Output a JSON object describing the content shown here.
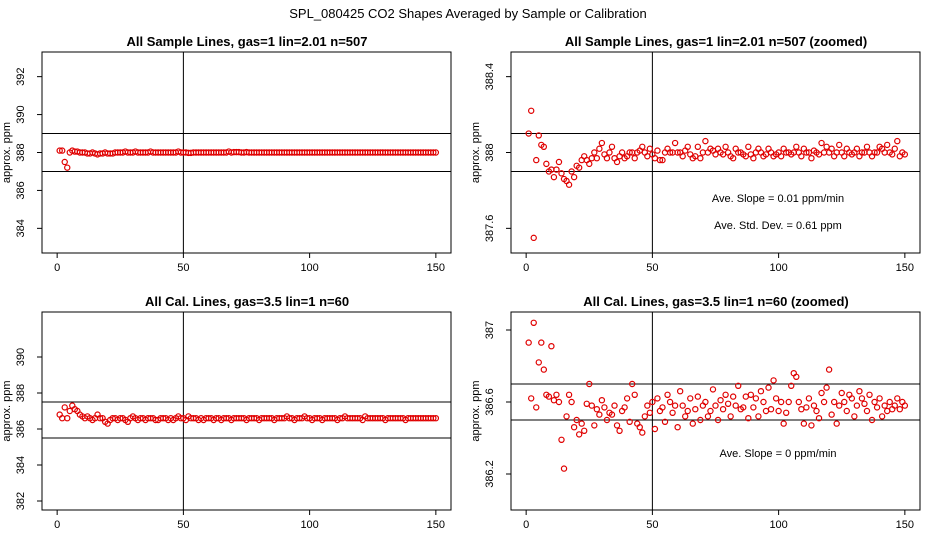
{
  "main_title": "SPL_080425  CO2 Shapes Averaged by Sample or Calibration",
  "chart_data": [
    {
      "type": "scatter",
      "title": "All Sample Lines, gas=1 lin=2.01 n=507",
      "xlabel": "",
      "ylabel": "approx. ppm",
      "xlim": [
        -6,
        156
      ],
      "ylim": [
        382.7,
        393.3
      ],
      "xticks": [
        0,
        50,
        100,
        150
      ],
      "yticks": [
        384,
        386,
        388,
        390,
        392
      ],
      "vline": 50,
      "hlines": [
        387.0,
        389.0
      ],
      "marker_color": "#e00000",
      "annotations": [],
      "x": [
        1,
        2,
        3,
        4,
        5,
        6,
        7,
        8,
        9,
        10,
        11,
        12,
        13,
        14,
        15,
        16,
        17,
        18,
        19,
        20,
        21,
        22,
        23,
        24,
        25,
        26,
        27,
        28,
        29,
        30,
        31,
        32,
        33,
        34,
        35,
        36,
        37,
        38,
        39,
        40,
        41,
        42,
        43,
        44,
        45,
        46,
        47,
        48,
        49,
        50,
        51,
        52,
        53,
        54,
        55,
        56,
        57,
        58,
        59,
        60,
        61,
        62,
        63,
        64,
        65,
        66,
        67,
        68,
        69,
        70,
        71,
        72,
        73,
        74,
        75,
        76,
        77,
        78,
        79,
        80,
        81,
        82,
        83,
        84,
        85,
        86,
        87,
        88,
        89,
        90,
        91,
        92,
        93,
        94,
        95,
        96,
        97,
        98,
        99,
        100,
        101,
        102,
        103,
        104,
        105,
        106,
        107,
        108,
        109,
        110,
        111,
        112,
        113,
        114,
        115,
        116,
        117,
        118,
        119,
        120,
        121,
        122,
        123,
        124,
        125,
        126,
        127,
        128,
        129,
        130,
        131,
        132,
        133,
        134,
        135,
        136,
        137,
        138,
        139,
        140,
        141,
        142,
        143,
        144,
        145,
        146,
        147,
        148,
        149,
        150
      ],
      "y": [
        388.1,
        388.1,
        387.5,
        387.2,
        388.0,
        388.1,
        388.05,
        388.05,
        388.0,
        388.0,
        388.0,
        387.95,
        387.95,
        388.0,
        387.95,
        387.9,
        387.95,
        387.95,
        388.0,
        387.95,
        387.95,
        387.95,
        388.0,
        388.0,
        388.0,
        388.0,
        388.05,
        388.0,
        388.0,
        388.0,
        388.05,
        388.0,
        388.0,
        388.0,
        388.0,
        388.0,
        388.05,
        388.0,
        388.0,
        388.0,
        388.0,
        388.0,
        388.0,
        388.0,
        388.0,
        388.0,
        388.0,
        388.05,
        388.0,
        388.0,
        388.0,
        387.98,
        387.98,
        388.0,
        388.0,
        388.0,
        388.0,
        388.0,
        388.0,
        388.0,
        388.0,
        388.0,
        388.0,
        388.0,
        388.0,
        388.0,
        388.0,
        388.05,
        388.0,
        388.02,
        388.02,
        388.02,
        388.0,
        388.0,
        388.02,
        388.0,
        388.0,
        388.0,
        388.0,
        388.0,
        388.0,
        388.0,
        388.0,
        388.0,
        388.0,
        388.0,
        388.0,
        388.0,
        388.0,
        388.0,
        388.0,
        388.0,
        388.0,
        388.0,
        388.0,
        388.0,
        388.0,
        388.0,
        388.0,
        388.0,
        388.0,
        388.0,
        388.0,
        388.0,
        388.0,
        388.0,
        388.0,
        388.0,
        388.0,
        388.0,
        388.0,
        388.0,
        388.0,
        388.0,
        388.0,
        388.0,
        388.0,
        388.0,
        388.0,
        388.0,
        388.0,
        388.0,
        388.0,
        388.0,
        388.0,
        388.0,
        388.0,
        388.0,
        388.0,
        388.0,
        388.0,
        388.0,
        388.0,
        388.0,
        388.0,
        388.0,
        388.0,
        388.0,
        388.0,
        388.0,
        388.0,
        388.0,
        388.0,
        388.0,
        388.0,
        388.0,
        388.0,
        388.0,
        388.0,
        388.0
      ]
    },
    {
      "type": "scatter",
      "title": "All Sample Lines, gas=1 lin=2.01 n=507 (zoomed)",
      "xlabel": "",
      "ylabel": "approx. ppm",
      "xlim": [
        -6,
        156
      ],
      "ylim": [
        387.47,
        388.53
      ],
      "xticks": [
        0,
        50,
        100,
        150
      ],
      "yticks": [
        387.6,
        388.0,
        388.4
      ],
      "vline": 50,
      "hlines": [
        387.9,
        388.1
      ],
      "marker_color": "#e00000",
      "annotations": [
        "Ave. Slope =  0.01  ppm/min",
        "Ave. Std. Dev. =  0.61  ppm"
      ],
      "x": [
        1,
        2,
        3,
        4,
        5,
        6,
        7,
        8,
        9,
        10,
        11,
        12,
        13,
        14,
        15,
        16,
        17,
        18,
        19,
        20,
        21,
        22,
        23,
        24,
        25,
        26,
        27,
        28,
        29,
        30,
        31,
        32,
        33,
        34,
        35,
        36,
        37,
        38,
        39,
        40,
        41,
        42,
        43,
        44,
        45,
        46,
        47,
        48,
        49,
        50,
        51,
        52,
        53,
        54,
        55,
        56,
        57,
        58,
        59,
        60,
        61,
        62,
        63,
        64,
        65,
        66,
        67,
        68,
        69,
        70,
        71,
        72,
        73,
        74,
        75,
        76,
        77,
        78,
        79,
        80,
        81,
        82,
        83,
        84,
        85,
        86,
        87,
        88,
        89,
        90,
        91,
        92,
        93,
        94,
        95,
        96,
        97,
        98,
        99,
        100,
        101,
        102,
        103,
        104,
        105,
        106,
        107,
        108,
        109,
        110,
        111,
        112,
        113,
        114,
        115,
        116,
        117,
        118,
        119,
        120,
        121,
        122,
        123,
        124,
        125,
        126,
        127,
        128,
        129,
        130,
        131,
        132,
        133,
        134,
        135,
        136,
        137,
        138,
        139,
        140,
        141,
        142,
        143,
        144,
        145,
        146,
        147,
        148,
        149,
        150
      ],
      "y": [
        388.1,
        388.22,
        387.55,
        387.96,
        388.09,
        388.04,
        388.03,
        387.94,
        387.9,
        387.91,
        387.87,
        387.91,
        387.95,
        387.89,
        387.86,
        387.85,
        387.83,
        387.9,
        387.87,
        387.93,
        387.92,
        387.96,
        387.98,
        387.96,
        387.94,
        387.97,
        388.0,
        387.97,
        388.02,
        388.05,
        387.99,
        387.97,
        388.0,
        388.03,
        387.97,
        387.95,
        387.98,
        388.0,
        387.97,
        387.98,
        388.0,
        388.0,
        387.97,
        388.0,
        388.01,
        388.03,
        388.0,
        387.98,
        388.02,
        387.99,
        387.97,
        388.01,
        387.96,
        387.96,
        388.0,
        388.02,
        388.0,
        388.0,
        388.05,
        388.0,
        388.0,
        387.98,
        388.01,
        388.03,
        387.99,
        387.97,
        387.98,
        388.03,
        387.97,
        388.0,
        388.06,
        388.0,
        388.02,
        388.01,
        387.99,
        388.02,
        388.0,
        387.99,
        388.03,
        388.0,
        387.98,
        387.97,
        388.02,
        388.0,
        388.0,
        387.99,
        387.98,
        388.03,
        387.99,
        387.97,
        388.0,
        388.02,
        388.0,
        387.98,
        387.99,
        388.02,
        388.0,
        387.98,
        387.99,
        388.0,
        387.98,
        388.02,
        388.0,
        388.0,
        387.99,
        388.0,
        388.03,
        388.0,
        387.98,
        388.02,
        388.0,
        388.0,
        387.97,
        388.01,
        388.0,
        387.99,
        388.05,
        388.0,
        388.03,
        388.0,
        388.02,
        387.98,
        388.0,
        388.04,
        388.0,
        387.98,
        388.02,
        388.0,
        387.99,
        388.0,
        388.02,
        387.98,
        388.0,
        388.0,
        388.03,
        388.0,
        387.98,
        388.0,
        388.0,
        388.03,
        388.02,
        388.0,
        388.04,
        388.0,
        387.99,
        388.02,
        388.06,
        387.98,
        388.0,
        387.99
      ]
    },
    {
      "type": "scatter",
      "title": "All Cal. Lines, gas=3.5 lin=1 n=60",
      "xlabel": "",
      "ylabel": "approx. ppm",
      "xlim": [
        -6,
        156
      ],
      "ylim": [
        381.5,
        392.5
      ],
      "xticks": [
        0,
        50,
        100,
        150
      ],
      "yticks": [
        382,
        384,
        386,
        388,
        390
      ],
      "vline": 50,
      "hlines": [
        385.5,
        387.5
      ],
      "marker_color": "#e00000",
      "annotations": [],
      "x": [
        1,
        2,
        3,
        4,
        5,
        6,
        7,
        8,
        9,
        10,
        11,
        12,
        13,
        14,
        15,
        16,
        17,
        18,
        19,
        20,
        21,
        22,
        23,
        24,
        25,
        26,
        27,
        28,
        29,
        30,
        31,
        32,
        33,
        34,
        35,
        36,
        37,
        38,
        39,
        40,
        41,
        42,
        43,
        44,
        45,
        46,
        47,
        48,
        49,
        50,
        51,
        52,
        53,
        54,
        55,
        56,
        57,
        58,
        59,
        60,
        61,
        62,
        63,
        64,
        65,
        66,
        67,
        68,
        69,
        70,
        71,
        72,
        73,
        74,
        75,
        76,
        77,
        78,
        79,
        80,
        81,
        82,
        83,
        84,
        85,
        86,
        87,
        88,
        89,
        90,
        91,
        92,
        93,
        94,
        95,
        96,
        97,
        98,
        99,
        100,
        101,
        102,
        103,
        104,
        105,
        106,
        107,
        108,
        109,
        110,
        111,
        112,
        113,
        114,
        115,
        116,
        117,
        118,
        119,
        120,
        121,
        122,
        123,
        124,
        125,
        126,
        127,
        128,
        129,
        130,
        131,
        132,
        133,
        134,
        135,
        136,
        137,
        138,
        139,
        140,
        141,
        142,
        143,
        144,
        145,
        146,
        147,
        148,
        149,
        150
      ],
      "y": [
        386.8,
        386.6,
        387.2,
        386.6,
        387.0,
        387.3,
        387.1,
        387.0,
        386.8,
        386.7,
        386.6,
        386.7,
        386.6,
        386.5,
        386.6,
        386.8,
        386.6,
        386.6,
        386.4,
        386.3,
        386.5,
        386.6,
        386.6,
        386.5,
        386.6,
        386.6,
        386.5,
        386.4,
        386.6,
        386.7,
        386.6,
        386.5,
        386.6,
        386.6,
        386.5,
        386.6,
        386.6,
        386.6,
        386.5,
        386.5,
        386.6,
        386.6,
        386.6,
        386.5,
        386.6,
        386.5,
        386.6,
        386.7,
        386.6,
        386.6,
        386.5,
        386.7,
        386.6,
        386.6,
        386.6,
        386.5,
        386.6,
        386.5,
        386.6,
        386.6,
        386.6,
        386.5,
        386.6,
        386.6,
        386.5,
        386.6,
        386.6,
        386.6,
        386.5,
        386.6,
        386.6,
        386.6,
        386.6,
        386.6,
        386.5,
        386.6,
        386.6,
        386.6,
        386.6,
        386.5,
        386.6,
        386.6,
        386.6,
        386.6,
        386.6,
        386.5,
        386.6,
        386.6,
        386.6,
        386.6,
        386.7,
        386.6,
        386.6,
        386.5,
        386.6,
        386.6,
        386.6,
        386.7,
        386.6,
        386.6,
        386.5,
        386.6,
        386.6,
        386.6,
        386.5,
        386.6,
        386.6,
        386.6,
        386.6,
        386.6,
        386.5,
        386.6,
        386.6,
        386.7,
        386.6,
        386.6,
        386.6,
        386.6,
        386.6,
        386.6,
        386.5,
        386.7,
        386.6,
        386.6,
        386.6,
        386.6,
        386.6,
        386.6,
        386.6,
        386.5,
        386.6,
        386.6,
        386.6,
        386.6,
        386.6,
        386.6,
        386.6,
        386.5,
        386.6,
        386.6,
        386.6,
        386.6,
        386.6,
        386.6,
        386.6,
        386.6,
        386.6,
        386.6,
        386.6,
        386.6
      ]
    },
    {
      "type": "scatter",
      "title": "All Cal. Lines, gas=3.5 lin=1 n=60 (zoomed)",
      "xlabel": "",
      "ylabel": "approx. ppm",
      "xlim": [
        -6,
        156
      ],
      "ylim": [
        386.0,
        387.1
      ],
      "xticks": [
        0,
        50,
        100,
        150
      ],
      "yticks": [
        386.2,
        386.6,
        387.0
      ],
      "vline": 50,
      "hlines": [
        386.5,
        386.7
      ],
      "marker_color": "#e00000",
      "annotations": [
        "Ave. Slope =  0  ppm/min"
      ],
      "x": [
        1,
        2,
        3,
        4,
        5,
        6,
        7,
        8,
        9,
        10,
        11,
        12,
        13,
        14,
        15,
        16,
        17,
        18,
        19,
        20,
        21,
        22,
        23,
        24,
        25,
        26,
        27,
        28,
        29,
        30,
        31,
        32,
        33,
        34,
        35,
        36,
        37,
        38,
        39,
        40,
        41,
        42,
        43,
        44,
        45,
        46,
        47,
        48,
        49,
        50,
        51,
        52,
        53,
        54,
        55,
        56,
        57,
        58,
        59,
        60,
        61,
        62,
        63,
        64,
        65,
        66,
        67,
        68,
        69,
        70,
        71,
        72,
        73,
        74,
        75,
        76,
        77,
        78,
        79,
        80,
        81,
        82,
        83,
        84,
        85,
        86,
        87,
        88,
        89,
        90,
        91,
        92,
        93,
        94,
        95,
        96,
        97,
        98,
        99,
        100,
        101,
        102,
        103,
        104,
        105,
        106,
        107,
        108,
        109,
        110,
        111,
        112,
        113,
        114,
        115,
        116,
        117,
        118,
        119,
        120,
        121,
        122,
        123,
        124,
        125,
        126,
        127,
        128,
        129,
        130,
        131,
        132,
        133,
        134,
        135,
        136,
        137,
        138,
        139,
        140,
        141,
        142,
        143,
        144,
        145,
        146,
        147,
        148,
        149,
        150
      ],
      "y": [
        386.93,
        386.62,
        387.04,
        386.57,
        386.82,
        386.93,
        386.78,
        386.64,
        386.63,
        386.91,
        386.61,
        386.64,
        386.6,
        386.39,
        386.23,
        386.52,
        386.64,
        386.6,
        386.46,
        386.5,
        386.42,
        386.48,
        386.44,
        386.59,
        386.7,
        386.58,
        386.47,
        386.56,
        386.53,
        386.61,
        386.57,
        386.5,
        386.54,
        386.53,
        386.58,
        386.47,
        386.44,
        386.55,
        386.57,
        386.62,
        386.49,
        386.7,
        386.64,
        386.48,
        386.46,
        386.43,
        386.52,
        386.58,
        386.54,
        386.6,
        386.45,
        386.62,
        386.55,
        386.57,
        386.49,
        386.64,
        386.6,
        386.54,
        386.58,
        386.46,
        386.66,
        386.58,
        386.52,
        386.55,
        386.62,
        386.48,
        386.56,
        386.63,
        386.5,
        386.58,
        386.6,
        386.52,
        386.55,
        386.67,
        386.58,
        386.5,
        386.61,
        386.56,
        386.64,
        386.59,
        386.52,
        386.63,
        386.58,
        386.69,
        386.56,
        386.57,
        386.63,
        386.51,
        386.64,
        386.57,
        386.62,
        386.52,
        386.66,
        386.6,
        386.55,
        386.68,
        386.56,
        386.72,
        386.62,
        386.55,
        386.6,
        386.48,
        386.54,
        386.6,
        386.69,
        386.76,
        386.74,
        386.6,
        386.56,
        386.48,
        386.57,
        386.62,
        386.47,
        386.58,
        386.55,
        386.51,
        386.65,
        386.6,
        386.68,
        386.78,
        386.53,
        386.6,
        386.48,
        386.58,
        386.65,
        386.6,
        386.55,
        386.64,
        386.62,
        386.52,
        386.58,
        386.66,
        386.62,
        386.59,
        386.55,
        386.64,
        386.5,
        386.6,
        386.57,
        386.62,
        386.52,
        386.58,
        386.55,
        386.6,
        386.56,
        386.58,
        386.62,
        386.56,
        386.6,
        386.58
      ]
    }
  ]
}
